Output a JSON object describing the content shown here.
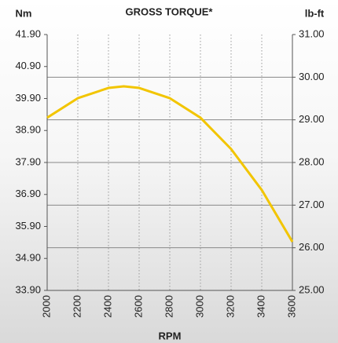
{
  "chart_data": {
    "type": "line",
    "title": "GROSS TORQUE*",
    "ylabel": "Nm",
    "y2label": "lb-ft",
    "xlabel": "RPM",
    "x": [
      2000,
      2200,
      2400,
      2500,
      2600,
      2800,
      3000,
      3200,
      3400,
      3600
    ],
    "series": [
      {
        "name": "Gross torque",
        "color": "#f2c500",
        "values": [
          39.3,
          39.91,
          40.23,
          40.28,
          40.23,
          39.91,
          39.3,
          38.32,
          37.04,
          35.42
        ]
      }
    ],
    "xlim": [
      2000,
      3600
    ],
    "xticks": [
      2000,
      2200,
      2400,
      2600,
      2800,
      3000,
      3200,
      3400,
      3600
    ],
    "ylim": [
      33.9,
      41.9
    ],
    "yticks": [
      {
        "value": 41.9,
        "label": "41.90"
      },
      {
        "value": 40.9,
        "label": "40.90"
      },
      {
        "value": 39.9,
        "label": "39.90"
      },
      {
        "value": 38.9,
        "label": "38.90"
      },
      {
        "value": 37.9,
        "label": "37.90"
      },
      {
        "value": 36.9,
        "label": "36.90"
      },
      {
        "value": 35.9,
        "label": "35.90"
      },
      {
        "value": 34.9,
        "label": "34.90"
      },
      {
        "value": 33.9,
        "label": "33.90"
      }
    ],
    "y2lim": [
      25,
      31
    ],
    "y2ticks": [
      {
        "value": 31,
        "label": "31.00"
      },
      {
        "value": 30,
        "label": "30.00"
      },
      {
        "value": 29,
        "label": "29.00"
      },
      {
        "value": 28,
        "label": "28.00"
      },
      {
        "value": 27,
        "label": "27.00"
      },
      {
        "value": 26,
        "label": "26.00"
      },
      {
        "value": 25,
        "label": "25.00"
      }
    ],
    "grid": true
  }
}
